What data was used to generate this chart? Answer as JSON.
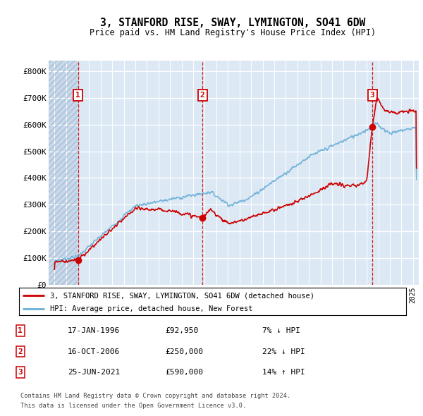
{
  "title": "3, STANFORD RISE, SWAY, LYMINGTON, SO41 6DW",
  "subtitle": "Price paid vs. HM Land Registry's House Price Index (HPI)",
  "background_color": "#dce9f5",
  "hatch_color": "#c8d8ea",
  "ylim": [
    0,
    840000
  ],
  "yticks": [
    0,
    100000,
    200000,
    300000,
    400000,
    500000,
    600000,
    700000,
    800000
  ],
  "ytick_labels": [
    "£0",
    "£100K",
    "£200K",
    "£300K",
    "£400K",
    "£500K",
    "£600K",
    "£700K",
    "£800K"
  ],
  "purchases": [
    {
      "date_num": 1996.04,
      "price": 92950,
      "label": "1"
    },
    {
      "date_num": 2006.79,
      "price": 250000,
      "label": "2"
    },
    {
      "date_num": 2021.48,
      "price": 590000,
      "label": "3"
    }
  ],
  "hpi_line_color": "#6aaed6",
  "price_line_color": "#cc0000",
  "legend_house_label": "3, STANFORD RISE, SWAY, LYMINGTON, SO41 6DW (detached house)",
  "legend_hpi_label": "HPI: Average price, detached house, New Forest",
  "table_rows": [
    {
      "num": "1",
      "date": "17-JAN-1996",
      "price": "£92,950",
      "hpi": "7% ↓ HPI"
    },
    {
      "num": "2",
      "date": "16-OCT-2006",
      "price": "£250,000",
      "hpi": "22% ↓ HPI"
    },
    {
      "num": "3",
      "date": "25-JUN-2021",
      "price": "£590,000",
      "hpi": "14% ↑ HPI"
    }
  ],
  "footnote1": "Contains HM Land Registry data © Crown copyright and database right 2024.",
  "footnote2": "This data is licensed under the Open Government Licence v3.0.",
  "xmin": 1993.5,
  "xmax": 2025.5,
  "purchase1_x": 1996.04,
  "purchase2_x": 2006.79,
  "purchase3_x": 2021.48
}
